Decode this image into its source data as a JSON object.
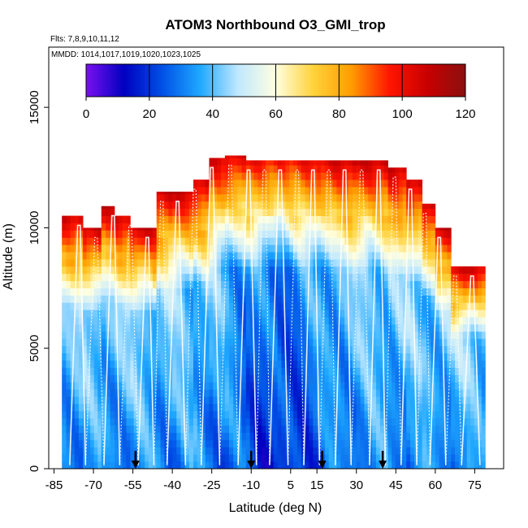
{
  "chart_data": {
    "type": "heatmap",
    "title": "ATOM3 Northbound O3_GMI_trop",
    "flights_label": "Flts: 7,8,9,10,11,12",
    "dates_label": "MMDD: 1014,1017,1019,1020,1023,1025",
    "xlabel": "Latitude (deg N)",
    "ylabel": "Altitude (m)",
    "xlim": [
      -87,
      86
    ],
    "ylim": [
      0,
      17500
    ],
    "x_ticks": [
      -85,
      -70,
      -55,
      -40,
      -25,
      -10,
      5,
      15,
      30,
      45,
      60,
      75
    ],
    "x_tick_labels": [
      "-85",
      "-70",
      "-55",
      "-40",
      "-25",
      "-10",
      "5",
      "15",
      "30",
      "45",
      "60",
      "75"
    ],
    "y_ticks": [
      0,
      5000,
      10000,
      15000
    ],
    "y_tick_labels": [
      "0",
      "5000",
      "10000",
      "15000"
    ],
    "colorbar": {
      "min": 0,
      "max": 120,
      "ticks": [
        0,
        20,
        40,
        60,
        80,
        100,
        120
      ],
      "tick_labels": [
        "0",
        "20",
        "40",
        "60",
        "80",
        "100",
        "120"
      ],
      "colors": [
        "#7b10f0",
        "#0000c0",
        "#0050e6",
        "#1fa8ff",
        "#bfe8ff",
        "#ffffe0",
        "#ffd23a",
        "#ff9c00",
        "#ff1500",
        "#c80000",
        "#8a1010"
      ]
    },
    "column_tops": [
      {
        "lat_start": -82,
        "lat_end": -74,
        "top": 10500
      },
      {
        "lat_start": -74,
        "lat_end": -67,
        "top": 10000
      },
      {
        "lat_start": -67,
        "lat_end": -62,
        "top": 10900
      },
      {
        "lat_start": -62,
        "lat_end": -56,
        "top": 10500
      },
      {
        "lat_start": -56,
        "lat_end": -52,
        "top": 10000
      },
      {
        "lat_start": -52,
        "lat_end": -46,
        "top": 10000
      },
      {
        "lat_start": -46,
        "lat_end": -40,
        "top": 11500
      },
      {
        "lat_start": -40,
        "lat_end": -32,
        "top": 11500
      },
      {
        "lat_start": -32,
        "lat_end": -26,
        "top": 12000
      },
      {
        "lat_start": -26,
        "lat_end": -20,
        "top": 12900
      },
      {
        "lat_start": -20,
        "lat_end": -12,
        "top": 13000
      },
      {
        "lat_start": -12,
        "lat_end": 0,
        "top": 12800
      },
      {
        "lat_start": 0,
        "lat_end": 15,
        "top": 12800
      },
      {
        "lat_start": 15,
        "lat_end": 30,
        "top": 12800
      },
      {
        "lat_start": 30,
        "lat_end": 42,
        "top": 12800
      },
      {
        "lat_start": 42,
        "lat_end": 49,
        "top": 12500
      },
      {
        "lat_start": 49,
        "lat_end": 55,
        "top": 12000
      },
      {
        "lat_start": 55,
        "lat_end": 60,
        "top": 11000
      },
      {
        "lat_start": 60,
        "lat_end": 66,
        "top": 10000
      },
      {
        "lat_start": 66,
        "lat_end": 72,
        "top": 8400
      },
      {
        "lat_start": 72,
        "lat_end": 79,
        "top": 8400
      }
    ],
    "upper_troposphere_o3": {
      "low": 75,
      "high": 110
    },
    "lower_troposphere_o3": {
      "range": [
        15,
        40
      ]
    },
    "flight_profile_latitudes": [
      -79,
      -73,
      -66,
      -60,
      -53,
      -47,
      -42,
      -35,
      -29,
      -22,
      -15,
      -8,
      -3,
      4,
      10,
      16,
      22,
      28,
      35,
      41,
      47,
      53,
      58,
      64,
      70,
      77
    ],
    "profile_arrows_lat": [
      -54,
      -10,
      17,
      40
    ]
  }
}
